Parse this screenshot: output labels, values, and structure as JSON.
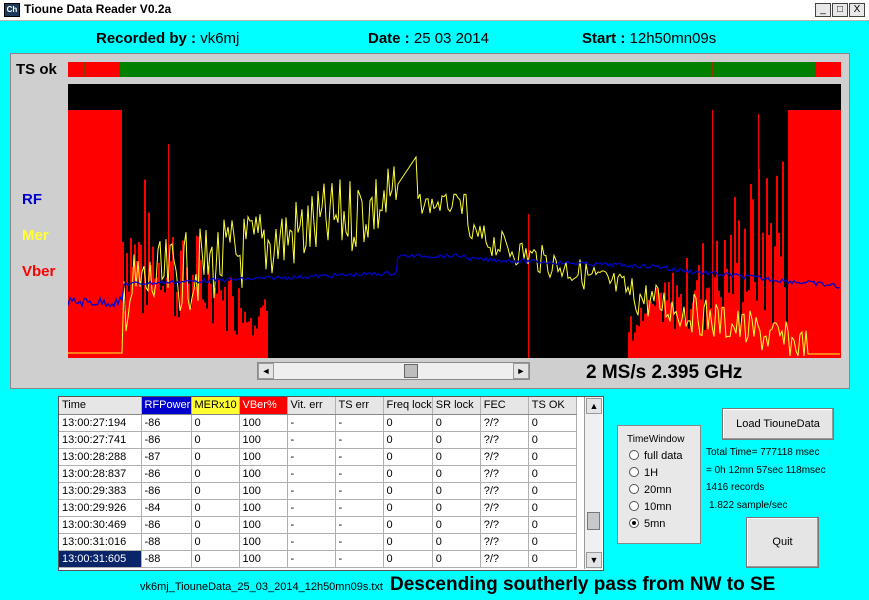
{
  "window": {
    "title": "Tioune Data Reader V0.2a",
    "icon_text": "Ch",
    "minimize": "_",
    "maximize": "□",
    "close": "X"
  },
  "header": {
    "recorded_label": "Recorded by :",
    "recorded_value": "vk6mj",
    "date_label": "Date :",
    "date_value": "25 03 2014",
    "start_label": "Start :",
    "start_value": "12h50mn09s"
  },
  "plot": {
    "ts_label": "TS ok",
    "rf_label": "RF",
    "mer_label": "Mer",
    "vber_label": "Vber",
    "colors": {
      "rf": "#0000cc",
      "mer": "#ffff33",
      "vber": "#ff0000",
      "ts_ok": "#008000",
      "ts_bad": "#ff0000",
      "bg": "#000000"
    },
    "scroll_left": "◄",
    "scroll_right": "►",
    "rate_text": "2 MS/s 2.395 GHz"
  },
  "table": {
    "columns": [
      "Time",
      "RFPower",
      "MERx10",
      "VBer%",
      "Vit. err",
      "TS err",
      "Freq lock",
      "SR lock",
      "FEC",
      "TS OK"
    ],
    "rows": [
      [
        "13:00:27:194",
        "-86",
        "0",
        "100",
        "-",
        "-",
        "0",
        "0",
        "?/?",
        "0"
      ],
      [
        "13:00:27:741",
        "-86",
        "0",
        "100",
        "-",
        "-",
        "0",
        "0",
        "?/?",
        "0"
      ],
      [
        "13:00:28:288",
        "-87",
        "0",
        "100",
        "-",
        "-",
        "0",
        "0",
        "?/?",
        "0"
      ],
      [
        "13:00:28:837",
        "-86",
        "0",
        "100",
        "-",
        "-",
        "0",
        "0",
        "?/?",
        "0"
      ],
      [
        "13:00:29:383",
        "-86",
        "0",
        "100",
        "-",
        "-",
        "0",
        "0",
        "?/?",
        "0"
      ],
      [
        "13:00:29:926",
        "-84",
        "0",
        "100",
        "-",
        "-",
        "0",
        "0",
        "?/?",
        "0"
      ],
      [
        "13:00:30:469",
        "-86",
        "0",
        "100",
        "-",
        "-",
        "0",
        "0",
        "?/?",
        "0"
      ],
      [
        "13:00:31:016",
        "-88",
        "0",
        "100",
        "-",
        "-",
        "0",
        "0",
        "?/?",
        "0"
      ],
      [
        "13:00:31:605",
        "-88",
        "0",
        "100",
        "-",
        "-",
        "0",
        "0",
        "?/?",
        "0"
      ]
    ],
    "selected_row": 8,
    "scroll_up": "▲",
    "scroll_down": "▼"
  },
  "footer": {
    "filename": "vk6mj_TiouneData_25_03_2014_12h50mn09s.txt",
    "pass_note": "Descending southerly pass from NW to SE"
  },
  "controls": {
    "load_button": "Load TiouneData",
    "quit_button": "Quit",
    "timewindow_title": "TimeWindow",
    "options": [
      "full data",
      "1H",
      "20mn",
      "10mn",
      "5mn"
    ],
    "selected_option": "5mn",
    "total_time": "Total Time= 777118 msec",
    "total_time_split": "= 0h 12mn 57sec 118msec",
    "records": "1416 records",
    "sample_rate": "1.822 sample/sec"
  }
}
